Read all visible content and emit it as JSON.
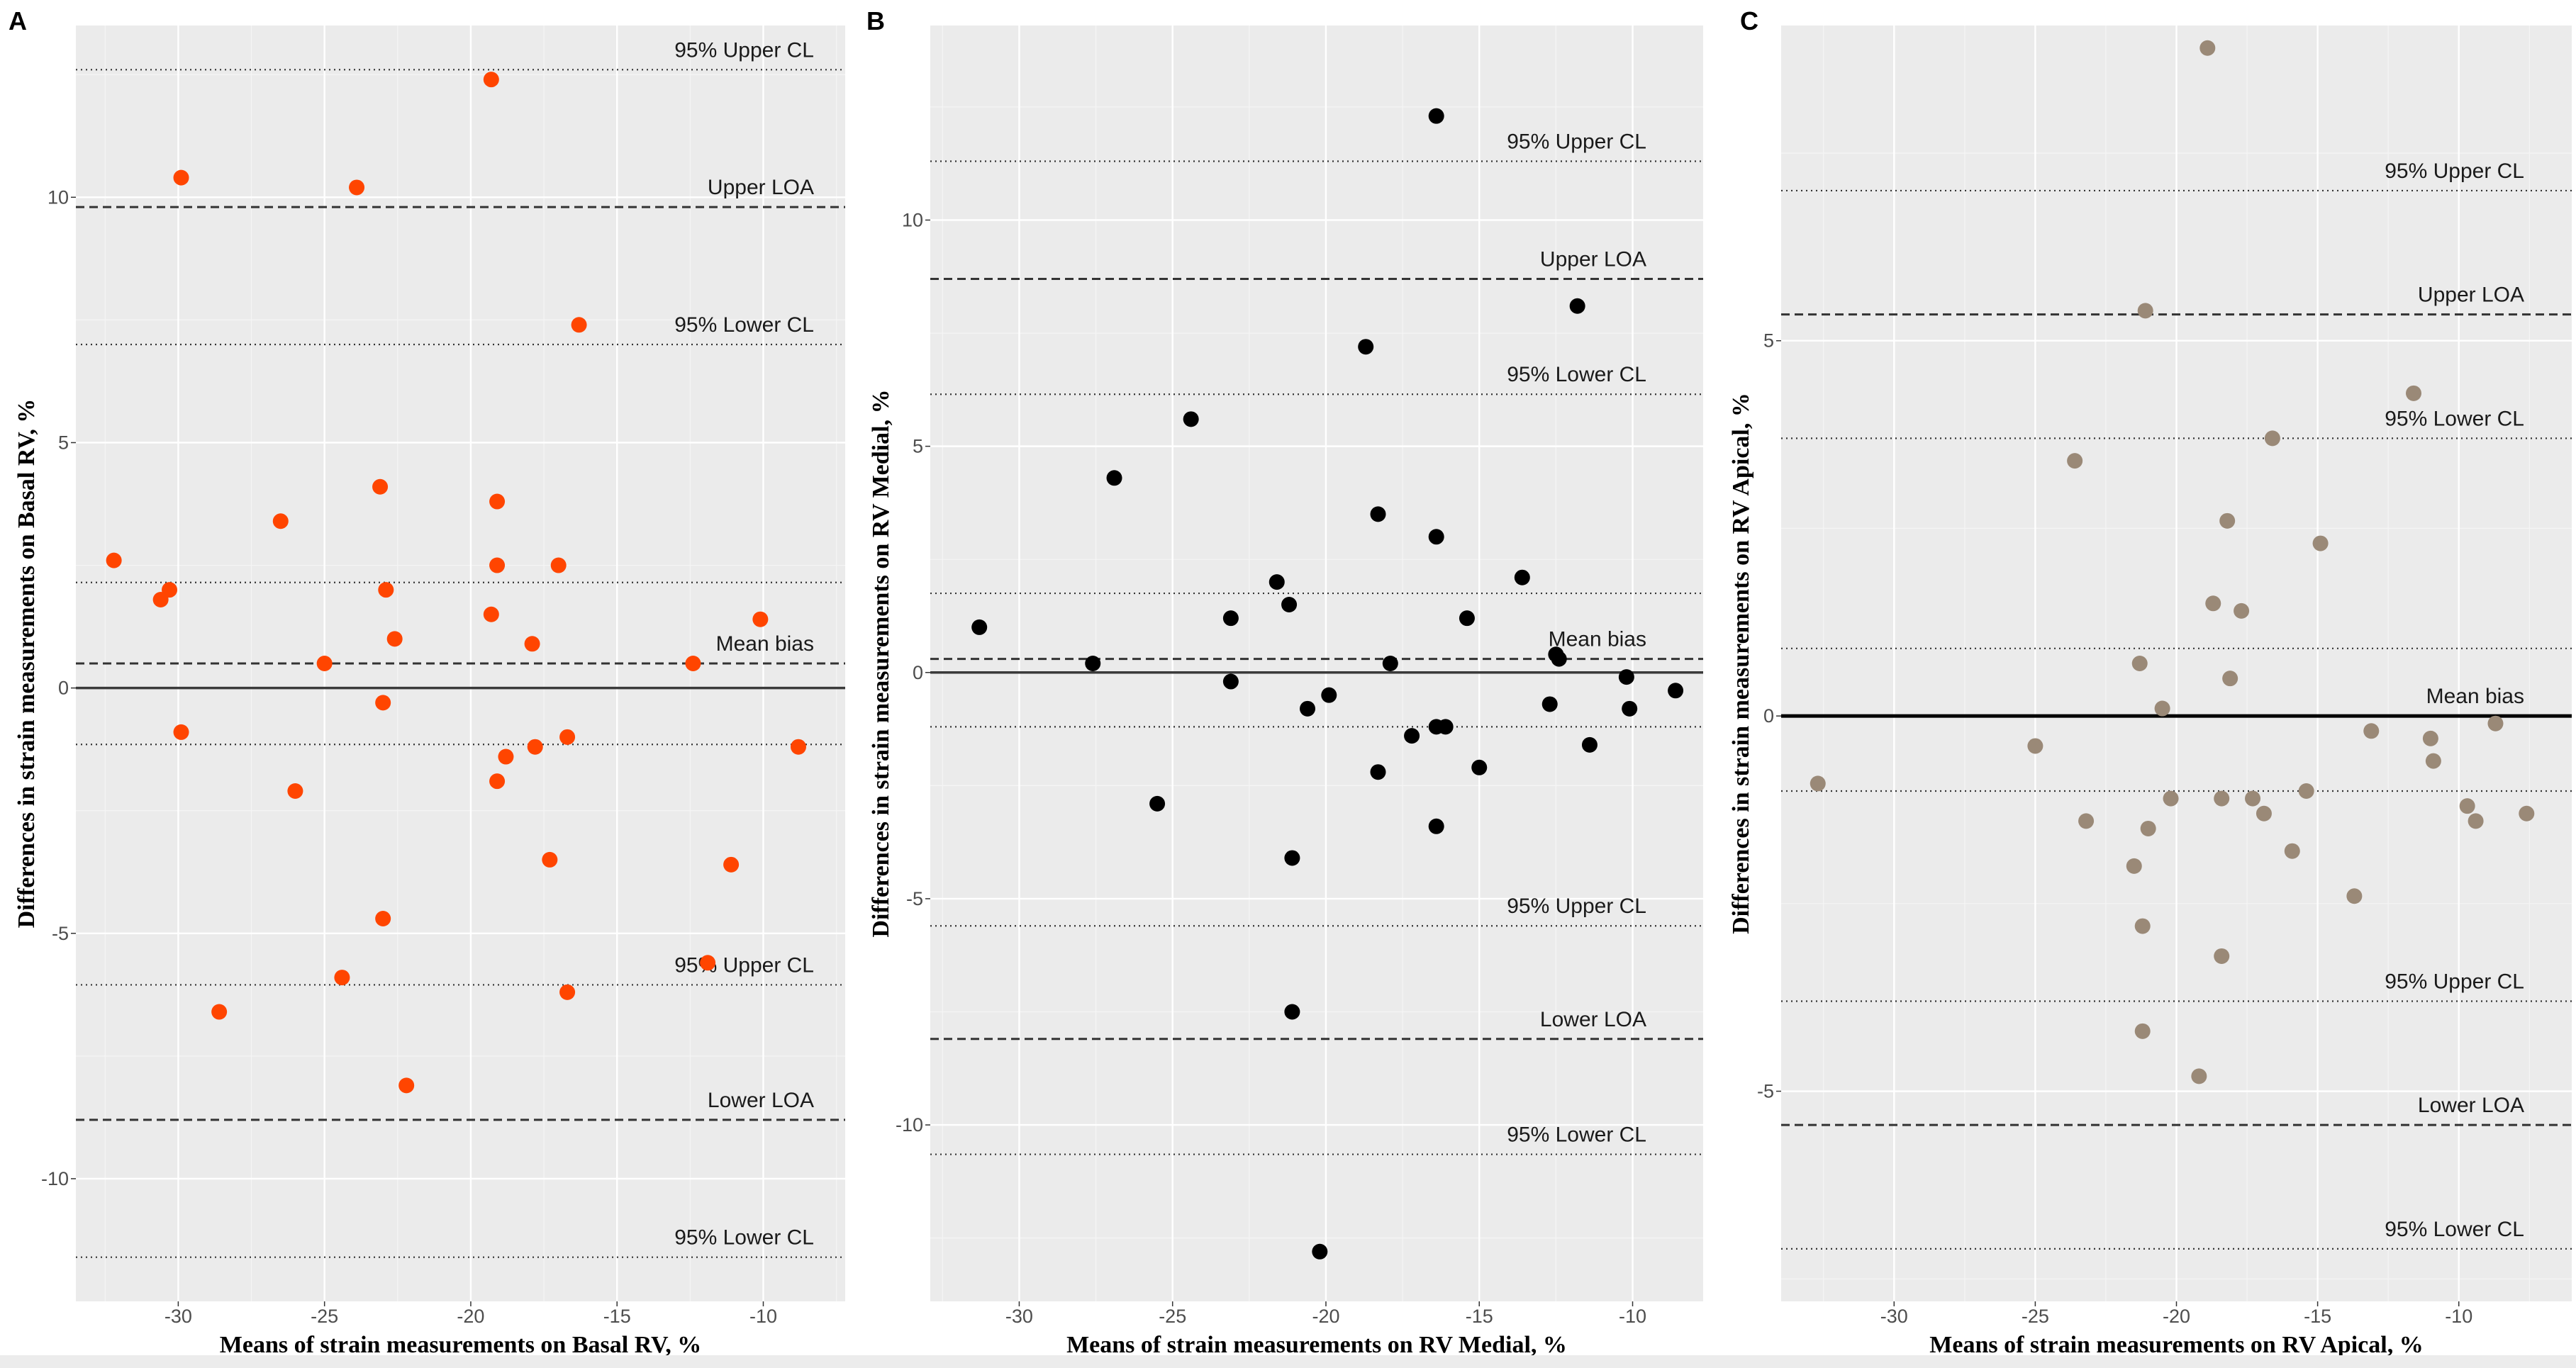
{
  "chart_data": [
    {
      "panel": "A",
      "type": "scatter",
      "xlabel": "Means of strain measurements on Basal RV, %",
      "ylabel": "Differences in strain measurements on Basal RV, %",
      "xlim": [
        -33.5,
        -7.2
      ],
      "ylim": [
        -12.5,
        13.5
      ],
      "xticks": [
        -30,
        -25,
        -20,
        -15,
        -10
      ],
      "yticks": [
        -10,
        -5,
        0,
        5,
        10
      ],
      "point_color": "#ff4500",
      "reference_lines": [
        {
          "label": "95% Upper CL",
          "value": 12.6,
          "style": "dotted"
        },
        {
          "label": "Upper LOA",
          "value": 9.8,
          "style": "dashed"
        },
        {
          "label": "95% Lower CL",
          "value": 7.0,
          "style": "dotted"
        },
        {
          "label": "",
          "value": 2.15,
          "style": "dotted"
        },
        {
          "label": "Mean bias",
          "value": 0.5,
          "style": "dashed"
        },
        {
          "label": "",
          "value": -1.15,
          "style": "dotted"
        },
        {
          "label": "95% Upper CL",
          "value": -6.05,
          "style": "dotted"
        },
        {
          "label": "Lower LOA",
          "value": -8.8,
          "style": "dashed"
        },
        {
          "label": "95% Lower CL",
          "value": -11.6,
          "style": "dotted"
        }
      ],
      "points": [
        [
          -19.3,
          12.4
        ],
        [
          -29.9,
          10.4
        ],
        [
          -23.9,
          10.2
        ],
        [
          -16.3,
          7.4
        ],
        [
          -23.1,
          4.1
        ],
        [
          -19.1,
          3.8
        ],
        [
          -26.5,
          3.4
        ],
        [
          -32.2,
          2.6
        ],
        [
          -19.1,
          2.5
        ],
        [
          -17.0,
          2.5
        ],
        [
          -22.9,
          2.0
        ],
        [
          -30.3,
          2.0
        ],
        [
          -30.6,
          1.8
        ],
        [
          -10.1,
          1.4
        ],
        [
          -19.3,
          1.5
        ],
        [
          -22.6,
          1.0
        ],
        [
          -17.9,
          0.9
        ],
        [
          -25.0,
          0.5
        ],
        [
          -12.4,
          0.5
        ],
        [
          -23.0,
          -0.3
        ],
        [
          -29.9,
          -0.9
        ],
        [
          -16.7,
          -1.0
        ],
        [
          -17.8,
          -1.2
        ],
        [
          -8.8,
          -1.2
        ],
        [
          -18.8,
          -1.4
        ],
        [
          -19.1,
          -1.9
        ],
        [
          -26.0,
          -2.1
        ],
        [
          -17.3,
          -3.5
        ],
        [
          -11.1,
          -3.6
        ],
        [
          -23.0,
          -4.7
        ],
        [
          -11.9,
          -5.6
        ],
        [
          -24.4,
          -5.9
        ],
        [
          -16.7,
          -6.2
        ],
        [
          -28.6,
          -6.6
        ],
        [
          -22.2,
          -8.1
        ]
      ]
    },
    {
      "panel": "B",
      "type": "scatter",
      "xlabel": "Means of strain measurements on RV Medial, %",
      "ylabel": "Differences in strain measurements on RV Medial, %",
      "xlim": [
        -32.9,
        -7.7
      ],
      "ylim": [
        -13.9,
        14.3
      ],
      "xticks": [
        -30,
        -25,
        -20,
        -15,
        -10
      ],
      "yticks": [
        -10,
        -5,
        0,
        5,
        10
      ],
      "point_color": "#000000",
      "reference_lines": [
        {
          "label": "95% Upper CL",
          "value": 11.3,
          "style": "dotted"
        },
        {
          "label": "Upper LOA",
          "value": 8.7,
          "style": "dashed"
        },
        {
          "label": "95% Lower CL",
          "value": 6.15,
          "style": "dotted"
        },
        {
          "label": "",
          "value": 1.75,
          "style": "dotted"
        },
        {
          "label": "Mean bias",
          "value": 0.3,
          "style": "dashed"
        },
        {
          "label": "",
          "value": -1.2,
          "style": "dotted"
        },
        {
          "label": "95% Upper CL",
          "value": -5.6,
          "style": "dotted"
        },
        {
          "label": "Lower LOA",
          "value": -8.1,
          "style": "dashed"
        },
        {
          "label": "95% Lower CL",
          "value": -10.65,
          "style": "dotted"
        }
      ],
      "points": [
        [
          -16.4,
          12.3
        ],
        [
          -11.8,
          8.1
        ],
        [
          -18.7,
          7.2
        ],
        [
          -24.4,
          5.6
        ],
        [
          -26.9,
          4.3
        ],
        [
          -18.3,
          3.5
        ],
        [
          -16.4,
          3.0
        ],
        [
          -13.6,
          2.1
        ],
        [
          -21.6,
          2.0
        ],
        [
          -21.2,
          1.5
        ],
        [
          -23.1,
          1.2
        ],
        [
          -15.4,
          1.2
        ],
        [
          -31.3,
          1.0
        ],
        [
          -12.5,
          0.4
        ],
        [
          -12.4,
          0.3
        ],
        [
          -27.6,
          0.2
        ],
        [
          -17.9,
          0.2
        ],
        [
          -10.2,
          -0.1
        ],
        [
          -23.1,
          -0.2
        ],
        [
          -8.6,
          -0.4
        ],
        [
          -19.9,
          -0.5
        ],
        [
          -20.6,
          -0.8
        ],
        [
          -12.7,
          -0.7
        ],
        [
          -10.1,
          -0.8
        ],
        [
          -16.4,
          -1.2
        ],
        [
          -16.1,
          -1.2
        ],
        [
          -17.2,
          -1.4
        ],
        [
          -11.4,
          -1.6
        ],
        [
          -15.0,
          -2.1
        ],
        [
          -18.3,
          -2.2
        ],
        [
          -25.5,
          -2.9
        ],
        [
          -16.4,
          -3.4
        ],
        [
          -21.1,
          -4.1
        ],
        [
          -21.1,
          -7.5
        ],
        [
          -20.2,
          -12.8
        ]
      ]
    },
    {
      "panel": "C",
      "type": "scatter",
      "xlabel": "Means of strain measurements on RV Apical, %",
      "ylabel": "Differences in strain measurements on RV Apical, %",
      "xlim": [
        -34.0,
        -6.0
      ],
      "ylim": [
        -7.8,
        9.2
      ],
      "xticks": [
        -30,
        -25,
        -20,
        -15,
        -10
      ],
      "yticks": [
        -5,
        0,
        5
      ],
      "point_color": "#9a8977",
      "reference_lines": [
        {
          "label": "95% Upper CL",
          "value": 7.0,
          "style": "dotted"
        },
        {
          "label": "Upper LOA",
          "value": 5.35,
          "style": "dashed"
        },
        {
          "label": "95% Lower CL",
          "value": 3.7,
          "style": "dotted"
        },
        {
          "label": "",
          "value": 0.9,
          "style": "dotted"
        },
        {
          "label": "Mean bias",
          "value": 0.0,
          "style": "solid"
        },
        {
          "label": "",
          "value": -1.0,
          "style": "dotted"
        },
        {
          "label": "95% Upper CL",
          "value": -3.8,
          "style": "dotted"
        },
        {
          "label": "Lower LOA",
          "value": -5.45,
          "style": "dashed"
        },
        {
          "label": "95% Lower CL",
          "value": -7.1,
          "style": "dotted"
        }
      ],
      "points": [
        [
          -18.9,
          8.9
        ],
        [
          -21.1,
          5.4
        ],
        [
          -11.6,
          4.3
        ],
        [
          -16.6,
          3.7
        ],
        [
          -23.6,
          3.4
        ],
        [
          -18.2,
          2.6
        ],
        [
          -14.9,
          2.3
        ],
        [
          -18.7,
          1.5
        ],
        [
          -17.7,
          1.4
        ],
        [
          -21.3,
          0.7
        ],
        [
          -18.1,
          0.5
        ],
        [
          -20.5,
          0.1
        ],
        [
          -13.1,
          -0.2
        ],
        [
          -11.0,
          -0.3
        ],
        [
          -8.7,
          -0.1
        ],
        [
          -25.0,
          -0.4
        ],
        [
          -10.9,
          -0.6
        ],
        [
          -32.7,
          -0.9
        ],
        [
          -20.2,
          -1.1
        ],
        [
          -18.4,
          -1.1
        ],
        [
          -17.3,
          -1.1
        ],
        [
          -15.4,
          -1.0
        ],
        [
          -16.9,
          -1.3
        ],
        [
          -9.7,
          -1.2
        ],
        [
          -9.4,
          -1.4
        ],
        [
          -7.6,
          -1.3
        ],
        [
          -23.2,
          -1.4
        ],
        [
          -21.0,
          -1.5
        ],
        [
          -15.9,
          -1.8
        ],
        [
          -21.5,
          -2.0
        ],
        [
          -13.7,
          -2.4
        ],
        [
          -21.2,
          -2.8
        ],
        [
          -18.4,
          -3.2
        ],
        [
          -21.2,
          -4.2
        ],
        [
          -19.2,
          -4.8
        ]
      ]
    }
  ]
}
